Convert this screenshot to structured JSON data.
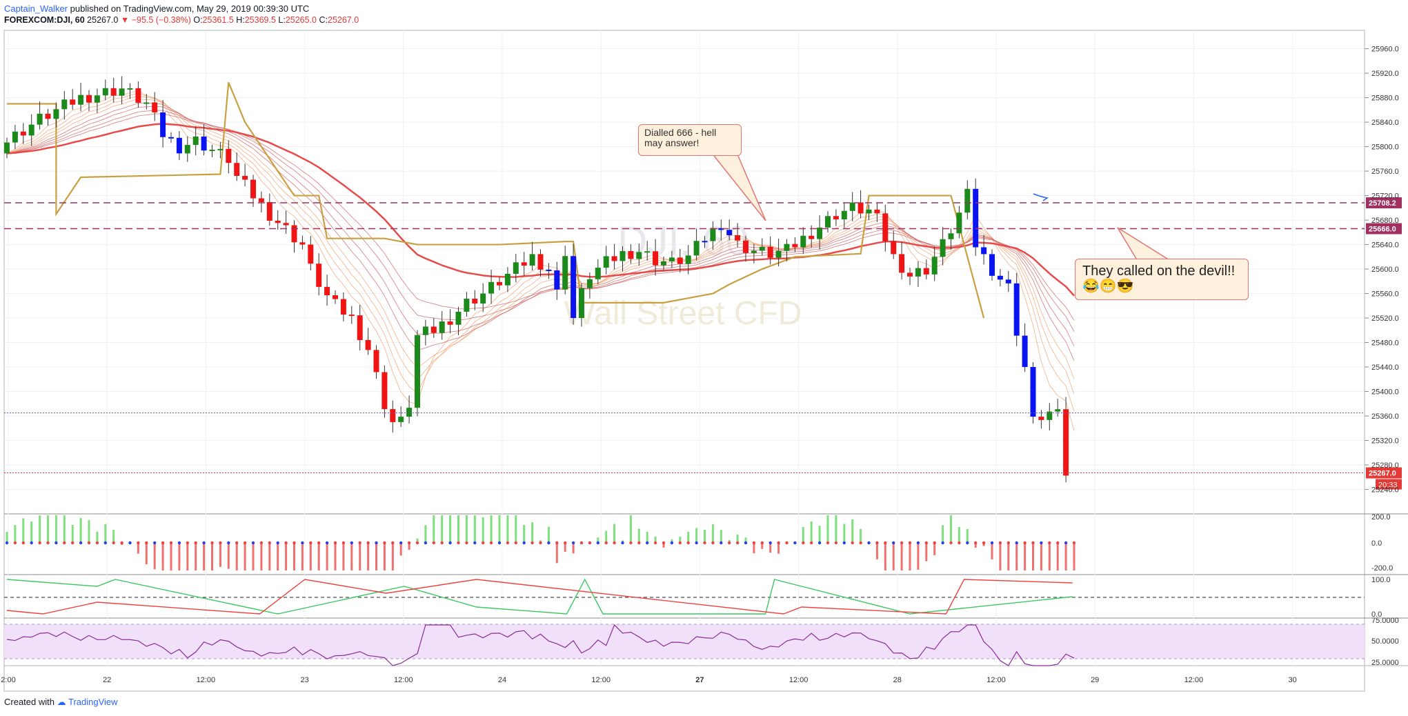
{
  "header": {
    "author": "Captain_Walker",
    "published": "published on TradingView.com, May 29, 2019 00:39:30 UTC",
    "symbol": "FOREXCOM:DJI, 60",
    "last": "25267.0",
    "change": "▼ −95.5 (−0.38%)",
    "o_label": "O:",
    "o": "25361.5",
    "h_label": "H:",
    "h": "25369.5",
    "l_label": "L:",
    "l": "25265.0",
    "c_label": "C:",
    "c": "25267.0"
  },
  "footer": {
    "created": "Created with",
    "brand": "TradingView"
  },
  "watermark": {
    "symbol": "DJI, 60",
    "name": "Wall Street CFD"
  },
  "annotations": {
    "callout1": "Dialled 666 - hell\nmay answer!",
    "callout2": "They called on the devil!! 😂😁😎"
  },
  "price_badges": {
    "level_high": "25708.2",
    "level_low": "25666.0",
    "last": "25267.0",
    "countdown": "20:33"
  },
  "colors": {
    "up": "#1b8a1b",
    "down": "#f01414",
    "blue_bar": "#0a14f0",
    "orange_line": "#c8a040",
    "level_line": "#a03060",
    "rsi_band": "#f0e0fa"
  },
  "chart_data": {
    "type": "candlestick",
    "price_axis": {
      "ticks": [
        "25960.0",
        "25920.0",
        "25880.0",
        "25840.0",
        "25800.0",
        "25760.0",
        "25720.0",
        "25680.0",
        "25640.0",
        "25600.0",
        "25560.0",
        "25520.0",
        "25480.0",
        "25440.0",
        "25400.0",
        "25360.0",
        "25320.0",
        "25280.0",
        "25240.0"
      ],
      "range": [
        25200,
        25990
      ]
    },
    "time_axis": {
      "ticks": [
        "2:00",
        "22",
        "12:00",
        "23",
        "12:00",
        "24",
        "12:00",
        "27",
        "12:00",
        "28",
        "12:00",
        "29",
        "12:00",
        "30"
      ]
    },
    "horizontal_levels": [
      25708.2,
      25666.0
    ],
    "last_price": 25267.0,
    "ohlc_path": [
      [
        0,
        25800
      ],
      [
        5,
        25845
      ],
      [
        10,
        25880
      ],
      [
        15,
        25895
      ],
      [
        18,
        25870
      ],
      [
        20,
        25820
      ],
      [
        22,
        25800
      ],
      [
        24,
        25810
      ],
      [
        26,
        25795
      ],
      [
        28,
        25780
      ],
      [
        29,
        25750
      ],
      [
        31,
        25720
      ],
      [
        33,
        25690
      ],
      [
        35,
        25665
      ],
      [
        37,
        25640
      ],
      [
        38,
        25600
      ],
      [
        40,
        25555
      ],
      [
        41,
        25540
      ],
      [
        43,
        25520
      ],
      [
        45,
        25470
      ],
      [
        47,
        25380
      ],
      [
        48,
        25350
      ],
      [
        49,
        25350
      ],
      [
        50,
        25380
      ],
      [
        51,
        25490
      ],
      [
        53,
        25500
      ],
      [
        55,
        25520
      ],
      [
        57,
        25545
      ],
      [
        59,
        25560
      ],
      [
        61,
        25580
      ],
      [
        63,
        25600
      ],
      [
        65,
        25620
      ],
      [
        67,
        25600
      ],
      [
        68,
        25560
      ],
      [
        69,
        25630
      ],
      [
        70,
        25520
      ],
      [
        71,
        25560
      ],
      [
        72,
        25590
      ],
      [
        74,
        25610
      ],
      [
        76,
        25625
      ],
      [
        78,
        25630
      ],
      [
        80,
        25615
      ],
      [
        82,
        25610
      ],
      [
        84,
        25620
      ],
      [
        86,
        25650
      ],
      [
        88,
        25675
      ],
      [
        90,
        25640
      ],
      [
        92,
        25630
      ],
      [
        94,
        25625
      ],
      [
        96,
        25630
      ],
      [
        98,
        25650
      ],
      [
        100,
        25670
      ],
      [
        102,
        25690
      ],
      [
        104,
        25700
      ],
      [
        106,
        25695
      ],
      [
        107,
        25680
      ],
      [
        108,
        25650
      ],
      [
        109,
        25620
      ],
      [
        111,
        25590
      ],
      [
        113,
        25600
      ],
      [
        115,
        25640
      ],
      [
        117,
        25690
      ],
      [
        118,
        25720
      ],
      [
        119,
        25640
      ],
      [
        120,
        25620
      ],
      [
        121,
        25600
      ],
      [
        123,
        25570
      ],
      [
        124,
        25500
      ],
      [
        125,
        25440
      ],
      [
        126,
        25350
      ],
      [
        127,
        25360
      ],
      [
        128,
        25365
      ],
      [
        129,
        25360
      ],
      [
        130,
        25267
      ]
    ],
    "oscillator_axis": {
      "ticks": [
        "200.0",
        "0.0",
        "-200.0"
      ]
    },
    "stoch_axis": {
      "ticks": [
        "100.0",
        "0.0"
      ]
    },
    "rsi_axis": {
      "ticks": [
        "75.0000",
        "50.0000",
        "25.0000"
      ]
    }
  }
}
